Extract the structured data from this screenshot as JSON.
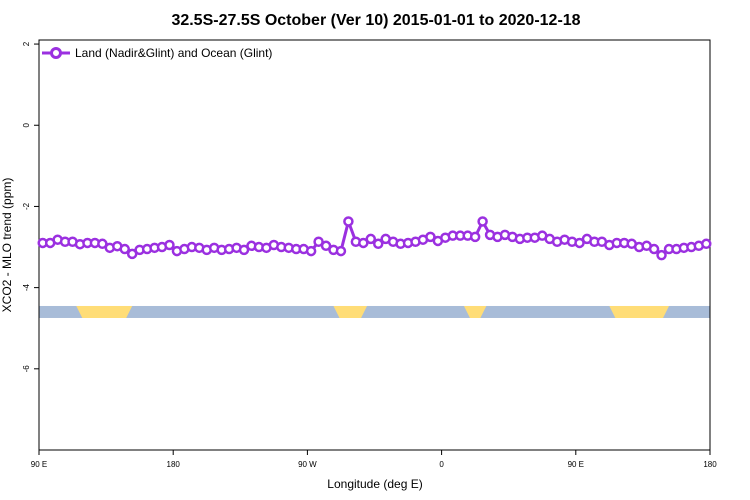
{
  "chart_data": {
    "type": "line",
    "title": "32.5S-27.5S October (Ver 10)   2015-01-01 to 2020-12-18",
    "xlabel": "Longitude (deg E)",
    "ylabel": "XCO2 - MLO trend (ppm)",
    "xlim": [
      90,
      450
    ],
    "ylim": [
      -8,
      2.1
    ],
    "x_ticks": [
      {
        "value": 90,
        "label": "90 E"
      },
      {
        "value": 162,
        "label": "180"
      },
      {
        "value": 234,
        "label": "90 W"
      },
      {
        "value": 306,
        "label": "0"
      },
      {
        "value": 378,
        "label": "90 E"
      },
      {
        "value": 450,
        "label": "180"
      }
    ],
    "y_ticks": [
      {
        "value": 2,
        "label": "2"
      },
      {
        "value": 0,
        "label": "0"
      },
      {
        "value": -2,
        "label": "-2"
      },
      {
        "value": -4,
        "label": "-4"
      },
      {
        "value": -6,
        "label": "-6"
      }
    ],
    "grid": false,
    "legend_position": "top-left",
    "series": [
      {
        "name": "Land (Nadir&Glint) and Ocean (Glint)",
        "color": "#9b30e0",
        "x": [
          92,
          96,
          100,
          104,
          108,
          112,
          116,
          120,
          124,
          128,
          132,
          136,
          140,
          144,
          148,
          152,
          156,
          160,
          164,
          168,
          172,
          176,
          180,
          184,
          188,
          192,
          196,
          200,
          204,
          208,
          212,
          216,
          220,
          224,
          228,
          232,
          236,
          240,
          244,
          248,
          252,
          256,
          260,
          264,
          268,
          272,
          276,
          280,
          284,
          288,
          292,
          296,
          300,
          304,
          308,
          312,
          316,
          320,
          324,
          328,
          332,
          336,
          340,
          344,
          348,
          352,
          356,
          360,
          364,
          368,
          372,
          376,
          380,
          384,
          388,
          392,
          396,
          400,
          404,
          408,
          412,
          416,
          420,
          424,
          428,
          432,
          436,
          440,
          444,
          448
        ],
        "y": [
          -2.9,
          -2.9,
          -2.82,
          -2.87,
          -2.87,
          -2.93,
          -2.9,
          -2.9,
          -2.92,
          -3.02,
          -2.98,
          -3.05,
          -3.17,
          -3.07,
          -3.05,
          -3.02,
          -3.0,
          -2.95,
          -3.1,
          -3.05,
          -3.0,
          -3.02,
          -3.07,
          -3.02,
          -3.07,
          -3.05,
          -3.02,
          -3.07,
          -2.97,
          -3.0,
          -3.02,
          -2.95,
          -3.0,
          -3.02,
          -3.05,
          -3.05,
          -3.1,
          -2.87,
          -2.97,
          -3.07,
          -3.1,
          -2.37,
          -2.87,
          -2.9,
          -2.8,
          -2.92,
          -2.8,
          -2.87,
          -2.92,
          -2.9,
          -2.87,
          -2.82,
          -2.75,
          -2.85,
          -2.77,
          -2.72,
          -2.72,
          -2.72,
          -2.75,
          -2.37,
          -2.7,
          -2.75,
          -2.7,
          -2.75,
          -2.8,
          -2.77,
          -2.77,
          -2.72,
          -2.8,
          -2.87,
          -2.82,
          -2.87,
          -2.9,
          -2.8,
          -2.87,
          -2.87,
          -2.95,
          -2.9,
          -2.9,
          -2.92,
          -3.0,
          -2.97,
          -3.05,
          -3.2,
          -3.05,
          -3.05,
          -3.02,
          -3.0,
          -2.97,
          -2.92
        ]
      }
    ],
    "surface_band": {
      "y_center": -4.6,
      "land_color": "#ffdd77",
      "ocean_color": "#a8bcd8",
      "land_segments": [
        [
          110,
          140
        ],
        [
          248,
          266
        ],
        [
          318,
          330
        ],
        [
          396,
          428
        ]
      ]
    }
  }
}
